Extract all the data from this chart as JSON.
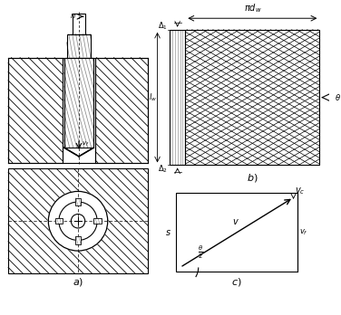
{
  "bg_color": "#ffffff",
  "line_color": "#000000",
  "fig_width": 3.76,
  "fig_height": 3.48,
  "dpi": 100
}
